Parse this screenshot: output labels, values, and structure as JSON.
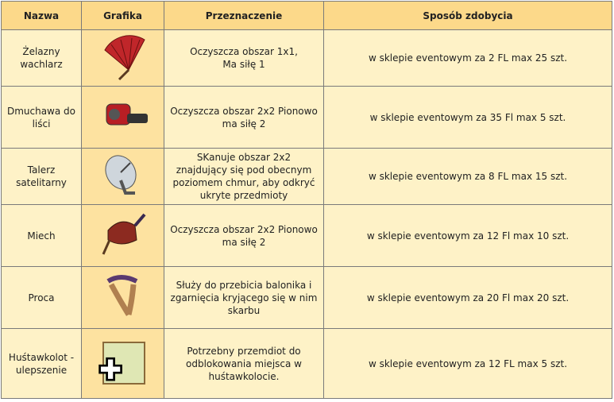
{
  "table": {
    "header": [
      "Nazwa",
      "Grafika",
      "Przeznaczenie",
      "Sposób zdobycia"
    ],
    "rows": [
      {
        "name": "Żelazny wachlarz",
        "purpose": [
          "Oczyszcza obszar 1x1,",
          "Ma siłę 1"
        ],
        "source": "w sklepie eventowym za 2 FL max 25 szt."
      },
      {
        "name": "Dmuchawa do liści",
        "purpose": [
          "Oczyszcza obszar 2x2 Pionowo",
          "ma siłę 2"
        ],
        "source": "w sklepie eventowym za 35 Fl max 5 szt."
      },
      {
        "name": "Talerz satelitarny",
        "purpose": [
          "SKanuje obszar 2x2",
          "znajdujący się pod obecnym",
          "poziomem chmur, aby odkryć",
          "ukryte przedmioty"
        ],
        "source": "w sklepie eventowym za 8 FL max 15 szt."
      },
      {
        "name": "Miech",
        "purpose": [
          "Oczyszcza obszar 2x2 Pionowo",
          "ma siłę 2"
        ],
        "source": "w sklepie eventowym za 12 Fl max 10 szt."
      },
      {
        "name": "Proca",
        "purpose": [
          "Służy do przebicia balonika i",
          "zgarnięcia kryjącego się w nim",
          "skarbu"
        ],
        "source": "w sklepie eventowym za 20 Fl max 20 szt."
      },
      {
        "name": "Huśtawkolot - ulepszenie",
        "purpose": [
          "Potrzebny przemdiot do",
          "odblokowania miejsca w",
          "huśtawkolocie."
        ],
        "source": "w sklepie eventowym za 12 FL max 5 szt."
      }
    ]
  }
}
